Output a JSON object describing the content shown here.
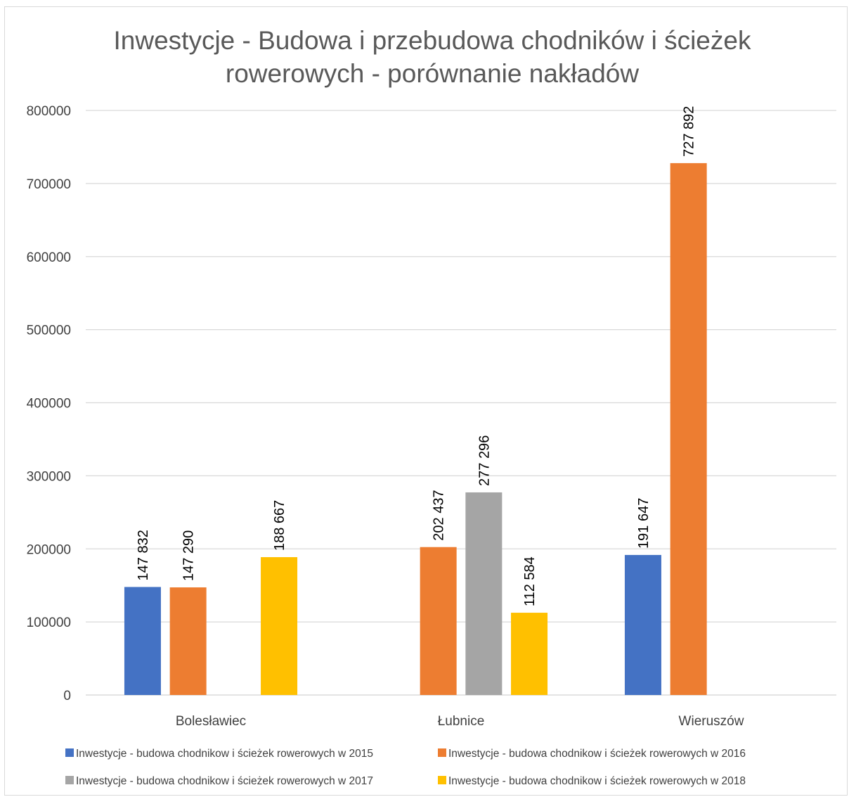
{
  "chart_data": {
    "type": "bar",
    "title": "Inwestycje - Budowa i przebudowa chodników i ścieżek rowerowych - porównanie nakładów",
    "title_lines": [
      "Inwestycje - Budowa i przebudowa chodników i ścieżek",
      "rowerowych - porównanie nakładów"
    ],
    "categories": [
      "Bolesławiec",
      "Łubnice",
      "Wieruszów"
    ],
    "series": [
      {
        "name": "Inwestycje - budowa chodnikow i ścieżek rowerowych w 2015",
        "color": "#4472C4",
        "values": [
          147832,
          null,
          191647
        ],
        "labels": [
          "147 832",
          "",
          "191 647"
        ]
      },
      {
        "name": "Inwestycje - budowa chodnikow i ścieżek rowerowych w 2016",
        "color": "#ED7D31",
        "values": [
          147290,
          202437,
          727892
        ],
        "labels": [
          "147 290",
          "202 437",
          "727 892"
        ]
      },
      {
        "name": "Inwestycje - budowa chodnikow i ścieżek rowerowych w 2017",
        "color": "#A5A5A5",
        "values": [
          null,
          277296,
          null
        ],
        "labels": [
          "",
          "277 296",
          ""
        ]
      },
      {
        "name": "Inwestycje - budowa chodnikow i ścieżek rowerowych w 2018",
        "color": "#FFC000",
        "values": [
          188667,
          112584,
          null
        ],
        "labels": [
          "188 667",
          "112 584",
          ""
        ]
      }
    ],
    "ylim": [
      0,
      800000
    ],
    "yticks": [
      0,
      100000,
      200000,
      300000,
      400000,
      500000,
      600000,
      700000,
      800000
    ],
    "ytick_labels": [
      "0",
      "100000",
      "200000",
      "300000",
      "400000",
      "500000",
      "600000",
      "700000",
      "800000"
    ],
    "grid": true,
    "legend_position": "bottom",
    "xlabel": "",
    "ylabel": ""
  }
}
